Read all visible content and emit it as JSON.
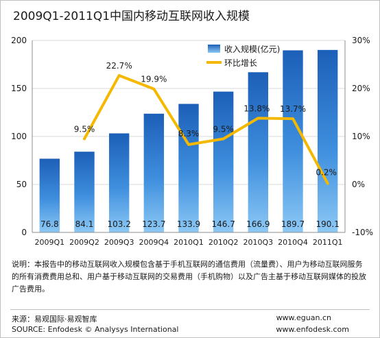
{
  "chart_data": {
    "type": "bar+line",
    "title": "2009Q1-2011Q1中国内移动互联网收入规模",
    "categories": [
      "2009Q1",
      "2009Q2",
      "2009Q3",
      "2009Q4",
      "2010Q1",
      "2010Q2",
      "2010Q3",
      "2010Q4",
      "2011Q1"
    ],
    "series": [
      {
        "name": "收入规模(亿元)",
        "kind": "bar",
        "axis": "left",
        "values": [
          76.8,
          84.1,
          103.2,
          123.7,
          133.9,
          146.7,
          166.9,
          189.7,
          190.1
        ],
        "labels": [
          "76.8",
          "84.1",
          "103.2",
          "123.7",
          "133.9",
          "146.7",
          "166.9",
          "189.7",
          "190.1"
        ],
        "color": "#2f7ed8"
      },
      {
        "name": "环比增长",
        "kind": "line",
        "axis": "right",
        "values": [
          null,
          9.5,
          22.7,
          19.9,
          8.3,
          9.5,
          13.8,
          13.7,
          0.2
        ],
        "labels": [
          "",
          "9.5%",
          "22.7%",
          "19.9%",
          "8.3%",
          "9.5%",
          "13.8%",
          "13.7%",
          "0.2%"
        ],
        "color": "#f5b800"
      }
    ],
    "y_left": {
      "range": [
        0,
        200
      ],
      "ticks": [
        "0",
        "50",
        "100",
        "150",
        "200"
      ]
    },
    "y_right": {
      "range": [
        -10,
        30
      ],
      "ticks": [
        "-10%",
        "0%",
        "10%",
        "20%",
        "30%"
      ]
    },
    "grid": true,
    "legend_position": "top-right"
  },
  "note": "说明：本报告中的移动互联网收入规模包含基于手机互联网的通信费用（流量费）、用户为移动互联网服务的所有消费费用总和、用户基于移动互联网的交易费用（手机购物）以及广告主基于移动互联网媒体的投放广告费用。",
  "source_cn": "来源：易观国际·易观智库",
  "source_en": "SOURCE: Enfodesk © Analysys International",
  "url1": "www.eguan.cn",
  "url2": "www.enfodesk.com"
}
